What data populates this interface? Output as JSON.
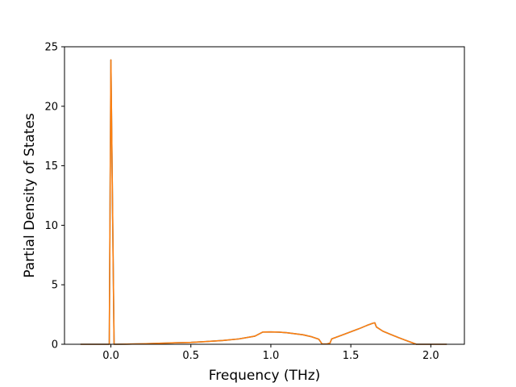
{
  "chart_data": {
    "type": "line",
    "title": "",
    "xlabel": "Frequency (THz)",
    "ylabel": "Partial Density of States",
    "xlim": [
      -0.29,
      2.21
    ],
    "ylim": [
      0,
      25
    ],
    "xticks": [
      0.0,
      0.5,
      1.0,
      1.5,
      2.0
    ],
    "xtick_labels": [
      "0.0",
      "0.5",
      "1.0",
      "1.5",
      "2.0"
    ],
    "yticks": [
      0,
      5,
      10,
      15,
      20,
      25
    ],
    "ytick_labels": [
      "0",
      "5",
      "10",
      "15",
      "20",
      "25"
    ],
    "grid": false,
    "legend": "none",
    "series": [
      {
        "color": "#1f77b4",
        "x": [
          -0.19,
          -0.01,
          0.0,
          0.02,
          0.03,
          0.1,
          0.2,
          0.3,
          0.4,
          0.5,
          0.6,
          0.7,
          0.8,
          0.9,
          0.95,
          1.0,
          1.05,
          1.1,
          1.2,
          1.25,
          1.3,
          1.32,
          1.35,
          1.37,
          1.38,
          1.45,
          1.5,
          1.55,
          1.6,
          1.64,
          1.65,
          1.66,
          1.7,
          1.75,
          1.8,
          1.85,
          1.9,
          1.91,
          2.0,
          2.1
        ],
        "y": [
          0,
          0,
          23.9,
          0,
          0,
          0.01,
          0.04,
          0.08,
          0.12,
          0.16,
          0.23,
          0.32,
          0.45,
          0.68,
          1.03,
          1.04,
          1.02,
          0.97,
          0.8,
          0.65,
          0.42,
          0.03,
          0.02,
          0.1,
          0.45,
          0.8,
          1.05,
          1.3,
          1.58,
          1.78,
          1.8,
          1.45,
          1.1,
          0.82,
          0.55,
          0.3,
          0.05,
          0,
          0,
          0
        ]
      },
      {
        "color": "#ff7f0e",
        "x": [
          -0.19,
          -0.01,
          0.0,
          0.02,
          0.03,
          0.1,
          0.2,
          0.3,
          0.4,
          0.5,
          0.6,
          0.7,
          0.8,
          0.9,
          0.95,
          1.0,
          1.05,
          1.1,
          1.2,
          1.25,
          1.3,
          1.32,
          1.35,
          1.37,
          1.38,
          1.45,
          1.5,
          1.55,
          1.6,
          1.64,
          1.65,
          1.66,
          1.7,
          1.75,
          1.8,
          1.85,
          1.9,
          1.91,
          2.0,
          2.1
        ],
        "y": [
          0,
          0,
          23.9,
          0,
          0,
          0.01,
          0.04,
          0.08,
          0.12,
          0.16,
          0.23,
          0.32,
          0.45,
          0.68,
          1.03,
          1.04,
          1.02,
          0.97,
          0.8,
          0.65,
          0.42,
          0.03,
          0.02,
          0.1,
          0.45,
          0.8,
          1.05,
          1.3,
          1.58,
          1.78,
          1.8,
          1.45,
          1.1,
          0.82,
          0.55,
          0.3,
          0.05,
          0,
          0,
          0
        ]
      }
    ]
  }
}
